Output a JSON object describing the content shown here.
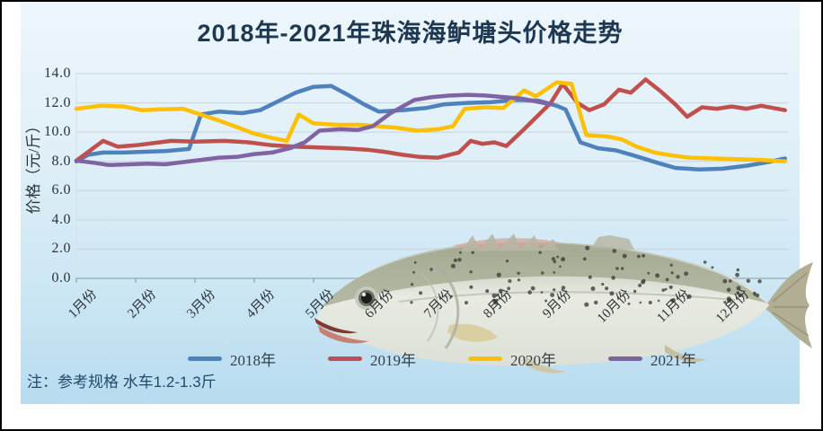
{
  "title": "2018年-2021年珠海海鲈塘头价格走势",
  "note": "注：参考规格  水车1.2-1.3斤",
  "colors": {
    "title_text": "#1d3850",
    "background_top": "#edf6fc",
    "background_bottom": "#b7dcf0",
    "gridline": "#c9d2d9",
    "axis": "#a8b2ba"
  },
  "chart_data": {
    "type": "line",
    "title": "2018年-2021年珠海海鲈塘头价格走势",
    "xlabel": "",
    "ylabel": "价格（元/斤）",
    "ylim": [
      0,
      14
    ],
    "ytick_labels": [
      "0.0",
      "2.0",
      "4.0",
      "6.0",
      "8.0",
      "10.0",
      "12.0",
      "14.0"
    ],
    "categories": [
      "1月份",
      "2月份",
      "3月份",
      "4月份",
      "5月份",
      "6月份",
      "7月份",
      "8月份",
      "9月份",
      "10月份",
      "11月份",
      "12月份"
    ],
    "grid": true,
    "legend_position": "bottom",
    "x_unit": "month (1=Jan … 12.95=end Dec), weekly resolution",
    "series": [
      {
        "name": "2018年",
        "color": "#4f81bd",
        "points": [
          [
            1.0,
            8.0
          ],
          [
            1.2,
            8.45
          ],
          [
            1.45,
            8.6
          ],
          [
            1.8,
            8.6
          ],
          [
            2.1,
            8.65
          ],
          [
            2.5,
            8.7
          ],
          [
            2.9,
            8.85
          ],
          [
            3.1,
            11.2
          ],
          [
            3.4,
            11.4
          ],
          [
            3.8,
            11.3
          ],
          [
            4.1,
            11.5
          ],
          [
            4.4,
            12.1
          ],
          [
            4.7,
            12.7
          ],
          [
            5.0,
            13.1
          ],
          [
            5.3,
            13.15
          ],
          [
            5.6,
            12.5
          ],
          [
            5.85,
            11.9
          ],
          [
            6.1,
            11.4
          ],
          [
            6.5,
            11.5
          ],
          [
            6.9,
            11.65
          ],
          [
            7.2,
            11.9
          ],
          [
            7.6,
            12.0
          ],
          [
            8.0,
            12.05
          ],
          [
            8.4,
            12.2
          ],
          [
            8.8,
            12.15
          ],
          [
            9.1,
            11.8
          ],
          [
            9.25,
            11.55
          ],
          [
            9.5,
            9.3
          ],
          [
            9.8,
            8.9
          ],
          [
            10.1,
            8.75
          ],
          [
            10.4,
            8.4
          ],
          [
            10.8,
            7.9
          ],
          [
            11.1,
            7.55
          ],
          [
            11.5,
            7.45
          ],
          [
            11.9,
            7.5
          ],
          [
            12.3,
            7.7
          ],
          [
            12.6,
            7.9
          ],
          [
            12.95,
            8.2
          ]
        ]
      },
      {
        "name": "2019年",
        "color": "#c0504d",
        "points": [
          [
            1.0,
            8.05
          ],
          [
            1.25,
            8.8
          ],
          [
            1.45,
            9.4
          ],
          [
            1.7,
            9.0
          ],
          [
            2.0,
            9.1
          ],
          [
            2.3,
            9.25
          ],
          [
            2.6,
            9.4
          ],
          [
            3.0,
            9.35
          ],
          [
            3.5,
            9.4
          ],
          [
            3.9,
            9.3
          ],
          [
            4.3,
            9.1
          ],
          [
            4.7,
            9.0
          ],
          [
            5.1,
            8.95
          ],
          [
            5.5,
            8.9
          ],
          [
            5.9,
            8.8
          ],
          [
            6.2,
            8.65
          ],
          [
            6.5,
            8.45
          ],
          [
            6.8,
            8.3
          ],
          [
            7.1,
            8.25
          ],
          [
            7.45,
            8.6
          ],
          [
            7.65,
            9.4
          ],
          [
            7.85,
            9.2
          ],
          [
            8.05,
            9.3
          ],
          [
            8.25,
            9.05
          ],
          [
            8.55,
            10.2
          ],
          [
            8.8,
            11.2
          ],
          [
            9.0,
            12.0
          ],
          [
            9.2,
            13.3
          ],
          [
            9.45,
            12.0
          ],
          [
            9.65,
            11.5
          ],
          [
            9.9,
            11.9
          ],
          [
            10.15,
            12.9
          ],
          [
            10.35,
            12.7
          ],
          [
            10.6,
            13.6
          ],
          [
            10.85,
            12.8
          ],
          [
            11.1,
            11.9
          ],
          [
            11.3,
            11.05
          ],
          [
            11.55,
            11.7
          ],
          [
            11.8,
            11.6
          ],
          [
            12.05,
            11.75
          ],
          [
            12.3,
            11.6
          ],
          [
            12.55,
            11.8
          ],
          [
            12.95,
            11.5
          ]
        ]
      },
      {
        "name": "2020年",
        "color": "#fdc005",
        "points": [
          [
            1.0,
            11.6
          ],
          [
            1.4,
            11.8
          ],
          [
            1.8,
            11.75
          ],
          [
            2.1,
            11.5
          ],
          [
            2.4,
            11.55
          ],
          [
            2.8,
            11.6
          ],
          [
            3.1,
            11.2
          ],
          [
            3.4,
            10.8
          ],
          [
            3.7,
            10.35
          ],
          [
            4.0,
            9.9
          ],
          [
            4.3,
            9.6
          ],
          [
            4.55,
            9.4
          ],
          [
            4.75,
            11.2
          ],
          [
            5.0,
            10.6
          ],
          [
            5.4,
            10.5
          ],
          [
            5.8,
            10.5
          ],
          [
            6.1,
            10.4
          ],
          [
            6.4,
            10.3
          ],
          [
            6.75,
            10.1
          ],
          [
            7.1,
            10.2
          ],
          [
            7.35,
            10.4
          ],
          [
            7.55,
            11.6
          ],
          [
            7.9,
            11.7
          ],
          [
            8.2,
            11.65
          ],
          [
            8.55,
            12.85
          ],
          [
            8.75,
            12.45
          ],
          [
            9.1,
            13.4
          ],
          [
            9.35,
            13.3
          ],
          [
            9.6,
            9.8
          ],
          [
            9.95,
            9.7
          ],
          [
            10.2,
            9.5
          ],
          [
            10.45,
            9.0
          ],
          [
            10.75,
            8.6
          ],
          [
            11.05,
            8.4
          ],
          [
            11.35,
            8.25
          ],
          [
            11.75,
            8.2
          ],
          [
            12.15,
            8.15
          ],
          [
            12.55,
            8.1
          ],
          [
            12.95,
            8.0
          ]
        ]
      },
      {
        "name": "2021年",
        "color": "#8064a2",
        "points": [
          [
            1.0,
            8.05
          ],
          [
            1.3,
            7.9
          ],
          [
            1.55,
            7.75
          ],
          [
            1.9,
            7.8
          ],
          [
            2.2,
            7.85
          ],
          [
            2.5,
            7.8
          ],
          [
            2.8,
            7.95
          ],
          [
            3.1,
            8.1
          ],
          [
            3.4,
            8.25
          ],
          [
            3.7,
            8.3
          ],
          [
            4.0,
            8.5
          ],
          [
            4.3,
            8.6
          ],
          [
            4.6,
            8.9
          ],
          [
            4.85,
            9.3
          ],
          [
            5.1,
            10.1
          ],
          [
            5.45,
            10.2
          ],
          [
            5.75,
            10.15
          ],
          [
            6.0,
            10.4
          ],
          [
            6.3,
            11.3
          ],
          [
            6.7,
            12.2
          ],
          [
            7.0,
            12.4
          ],
          [
            7.3,
            12.5
          ],
          [
            7.6,
            12.55
          ],
          [
            7.9,
            12.5
          ],
          [
            8.2,
            12.4
          ],
          [
            8.5,
            12.3
          ],
          [
            8.75,
            12.1
          ],
          [
            9.0,
            11.9
          ]
        ]
      }
    ],
    "annotations": [
      "decorative sea-bass fish photo overlapping lower half of plot"
    ]
  }
}
